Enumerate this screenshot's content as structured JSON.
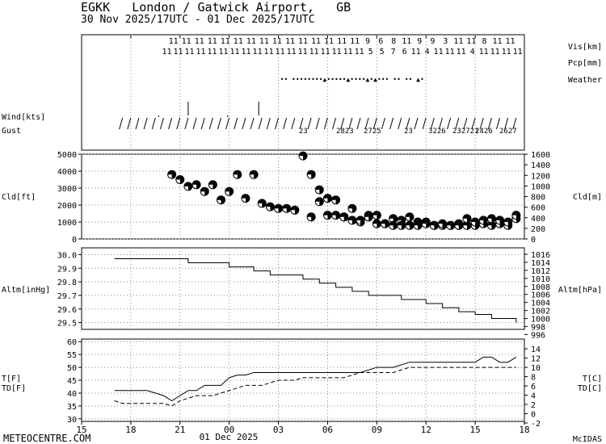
{
  "header": {
    "title": "EGKK   London / Gatwick Airport,   GB",
    "period": "30 Nov 2025/17UTC - 01 Dec 2025/17UTC"
  },
  "footer": {
    "site": "METEOCENTRE.COM",
    "date": "01 Dec 2025",
    "software": "McIDAS"
  },
  "panel_labels": {
    "vis": "Vis[km]",
    "pcp": "Pcp[mm]",
    "weather": "Weather",
    "wind": "Wind[kts]",
    "gust": "Gust",
    "cld_left": "Cld[ft]",
    "cld_right": "Cld[m]",
    "altm_left": "Altm[inHg]",
    "altm_right": "Altm[hPa]",
    "t_left": "T[F]",
    "td_left": "TD[F]",
    "t_right": "T[C]",
    "td_right": "TD[C]"
  },
  "colors": {
    "line": "#000000",
    "grid": "#888888",
    "background": "#ffffff"
  },
  "chart_data": [
    {
      "panel": "surface_obs",
      "type": "table",
      "x_hours": [
        20.5,
        21,
        21.5,
        22,
        22.5,
        23,
        23.5,
        24,
        24.5,
        25,
        25.5,
        26,
        26.5,
        27,
        27.5,
        28,
        28.5,
        29,
        29.5,
        30,
        30.5,
        31,
        31.5,
        32,
        32.5,
        33,
        33.5,
        34,
        34.5,
        35,
        35.5,
        36,
        36.5,
        37,
        37.5,
        38,
        38.5,
        39,
        39.5,
        40,
        40.5,
        41,
        41.5
      ],
      "vis_row_top": [
        "11",
        "11",
        "11",
        "11",
        "11",
        "11",
        "11",
        "11",
        "11",
        "11",
        "11",
        "11",
        "11",
        "11",
        "11",
        "11",
        "11",
        "11",
        "11",
        "11",
        "9",
        "",
        "6",
        "8",
        "11",
        "11",
        "9",
        "9",
        "11",
        "3",
        "11",
        "11",
        "11",
        "11",
        "8",
        "11",
        "11",
        "11",
        "",
        "",
        "",
        "",
        ""
      ],
      "vis_tokens_top": [
        "11",
        "11",
        "11",
        "11",
        "11",
        "11",
        "11",
        "11",
        "11",
        "11",
        "11",
        "11",
        "11",
        "11",
        "11",
        "9",
        "6",
        "8",
        "11",
        "9",
        "9",
        "3",
        "11",
        "11",
        "8",
        "11",
        "11"
      ],
      "vis_tokens_bottom": [
        "11",
        "11",
        "11",
        "11",
        "11",
        "11",
        "11",
        "11",
        "11",
        "11",
        "11",
        "11",
        "11",
        "11",
        "11",
        "11",
        "11",
        "11",
        "5",
        "5",
        "7",
        "6",
        "11",
        "4",
        "11",
        "11",
        "11",
        "4",
        "11",
        "11",
        "11",
        "11"
      ],
      "weather_marks": "••   ••••••••▲•••••▲••••▲•▲•••  ••   ••  ▲•",
      "gust_labels": [
        "23",
        "2823",
        "2725",
        "23",
        "3226",
        "232721",
        "2426",
        "2627"
      ]
    },
    {
      "panel": "cloud",
      "type": "scatter",
      "xlabel": "",
      "ylabel": "Cld[ft]",
      "ylim": [
        0,
        5000
      ],
      "y2label": "Cld[m]",
      "y2lim": [
        0,
        1600
      ],
      "series": [
        {
          "x": [
            20.5,
            21,
            21.5,
            22,
            22.5,
            23,
            23.5,
            24,
            24.5,
            25,
            25.5,
            26,
            26.5,
            27,
            27.5,
            28,
            28.5,
            29,
            29.5,
            30,
            30.5,
            31,
            31.5,
            32,
            32.5,
            33,
            33.5,
            34,
            34.5,
            35,
            35.5,
            36,
            36.5,
            37,
            37.5,
            38,
            38.5,
            39,
            39.5,
            40,
            40.5,
            41,
            41.5
          ],
          "y": [
            3800,
            3500,
            3100,
            3200,
            2800,
            3200,
            2300,
            2800,
            3800,
            2400,
            3800,
            2100,
            1900,
            1800,
            1800,
            1700,
            4900,
            3800,
            2900,
            1400,
            1400,
            1300,
            1100,
            1000,
            1400,
            900,
            900,
            1200,
            1100,
            1300,
            1000,
            1000,
            800,
            800,
            800,
            900,
            800,
            800,
            900,
            800,
            900,
            800,
            1200
          ],
          "secondary_y": [
            1300,
            2200,
            2400,
            2300,
            1300,
            1800,
            1100,
            1300,
            1400,
            900,
            800,
            800,
            800,
            800,
            900,
            800,
            900,
            800,
            800,
            1200,
            1000,
            1100,
            1200,
            1100,
            1000,
            1400
          ]
        }
      ]
    },
    {
      "panel": "altimeter",
      "type": "line",
      "ylabel": "Altm[inHg]",
      "ylim": [
        29.45,
        30.05
      ],
      "yticks": [
        "29.5",
        "29.6",
        "29.7",
        "29.8",
        "29.9",
        "30.0"
      ],
      "y2label": "Altm[hPa]",
      "y2ticks": [
        "996",
        "998",
        "1000",
        "1002",
        "1004",
        "1006",
        "1008",
        "1010",
        "1012",
        "1014",
        "1016"
      ],
      "x": [
        17,
        17.5,
        18,
        18.5,
        19,
        19.5,
        20,
        20.5,
        21,
        21.5,
        22,
        22.5,
        23,
        23.5,
        24,
        24.5,
        25,
        25.5,
        26,
        26.5,
        27,
        27.5,
        28,
        28.5,
        29,
        29.5,
        30,
        30.5,
        31,
        31.5,
        32,
        32.5,
        33,
        33.5,
        34,
        34.5,
        35,
        35.5,
        36,
        36.5,
        37,
        37.5,
        38,
        38.5,
        39,
        39.5,
        40,
        40.5,
        41,
        41.5
      ],
      "y": [
        29.97,
        29.97,
        29.97,
        29.97,
        29.97,
        29.97,
        29.97,
        29.97,
        29.97,
        29.94,
        29.94,
        29.94,
        29.94,
        29.94,
        29.91,
        29.91,
        29.91,
        29.88,
        29.88,
        29.85,
        29.85,
        29.85,
        29.85,
        29.82,
        29.82,
        29.79,
        29.79,
        29.76,
        29.76,
        29.73,
        29.73,
        29.7,
        29.7,
        29.7,
        29.7,
        29.67,
        29.67,
        29.67,
        29.64,
        29.64,
        29.61,
        29.61,
        29.58,
        29.58,
        29.56,
        29.56,
        29.53,
        29.53,
        29.53,
        29.5
      ]
    },
    {
      "panel": "temperature",
      "type": "line",
      "ylabel": "T[F] / TD[F]",
      "ylim": [
        29,
        61
      ],
      "yticks": [
        "30",
        "35",
        "40",
        "45",
        "50",
        "55",
        "60"
      ],
      "y2label": "T[C] / TD[C]",
      "y2ticks": [
        "-2",
        "0",
        "2",
        "4",
        "6",
        "8",
        "10",
        "12",
        "14"
      ],
      "x_ticks": [
        "15",
        "18",
        "21",
        "00",
        "03",
        "06",
        "09",
        "12",
        "15",
        "18"
      ],
      "series": [
        {
          "name": "T",
          "x": [
            17,
            18,
            19,
            20,
            20.5,
            21,
            21.5,
            22,
            22.5,
            23,
            23.5,
            24,
            24.5,
            25,
            25.5,
            26,
            27,
            28,
            29,
            29.5,
            30,
            31,
            32,
            33,
            34,
            35,
            36,
            36.5,
            37,
            38,
            39,
            39.5,
            40,
            40.5,
            41,
            41.5
          ],
          "y": [
            41,
            41,
            41,
            39,
            37,
            39,
            41,
            41,
            43,
            43,
            43,
            46,
            47,
            47,
            48,
            48,
            48,
            48,
            48,
            48,
            48,
            48,
            48,
            50,
            50,
            52,
            52,
            52,
            52,
            52,
            52,
            54,
            54,
            52,
            52,
            54
          ]
        },
        {
          "name": "TD",
          "x": [
            17,
            17.5,
            18,
            19,
            20,
            20.5,
            21,
            22,
            22.5,
            23,
            24,
            25,
            26,
            27,
            28,
            28.5,
            29,
            30,
            30.5,
            31,
            32,
            33,
            34,
            35,
            36,
            37,
            38,
            39,
            40,
            41,
            41.5
          ],
          "y": [
            37,
            36,
            36,
            36,
            36,
            35,
            37,
            39,
            39,
            39,
            41,
            43,
            43,
            45,
            45,
            46,
            46,
            46,
            46,
            46,
            48,
            48,
            48,
            50,
            50,
            50,
            50,
            50,
            50,
            50,
            50
          ]
        }
      ]
    }
  ]
}
